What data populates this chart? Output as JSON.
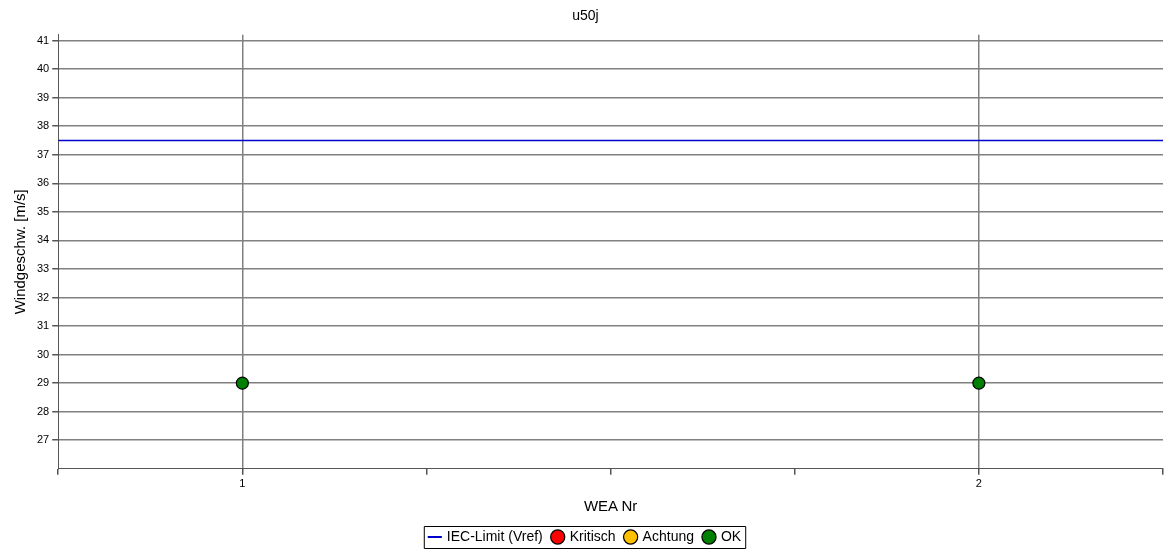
{
  "chart_data": {
    "type": "scatter",
    "title": "u50j",
    "xlabel": "WEA Nr",
    "ylabel": "Windgeschw. [m/s]",
    "x": [
      1,
      2
    ],
    "series": [
      {
        "name": "IEC-Limit (Vref)",
        "type": "line",
        "color": "#0000cc",
        "x": [
          0.75,
          2.25
        ],
        "values": [
          37.5,
          37.5
        ],
        "marker": "none"
      },
      {
        "name": "Kritisch",
        "color": "#ff0000",
        "values": [
          null,
          null
        ]
      },
      {
        "name": "Achtung",
        "color": "#ffc000",
        "values": [
          null,
          null
        ]
      },
      {
        "name": "OK",
        "color": "#008000",
        "values": [
          29,
          29
        ]
      }
    ],
    "xlim": [
      0.75,
      2.25
    ],
    "xticks": [
      {
        "value": 0.75,
        "label": null
      },
      1,
      {
        "value": 1.25,
        "label": null
      },
      {
        "value": 1.5,
        "label": null
      },
      {
        "value": 1.75,
        "label": null
      },
      2,
      {
        "value": 2.25,
        "label": null
      }
    ],
    "ylim": [
      26,
      41.2
    ],
    "yticks": [
      27,
      28,
      29,
      30,
      31,
      32,
      33,
      34,
      35,
      36,
      37,
      38,
      39,
      40,
      41
    ],
    "grid": true,
    "legend": "bottom",
    "marker": "circle"
  }
}
